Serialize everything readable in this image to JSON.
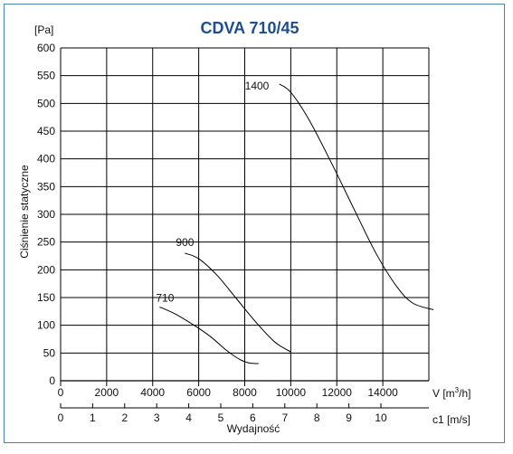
{
  "chart_data": {
    "type": "line",
    "title": "CDVA 710/45",
    "ylabel": "Ciśnienie statyczne",
    "yunit": "[Pa]",
    "xlabel": "Wydajność",
    "x_unit_label": "V [m",
    "x_unit_sup": "3",
    "x_unit_suffix": "/h]",
    "x2_unit_label": "c1 [m/s]",
    "xlim": [
      0,
      16000
    ],
    "ylim": [
      0,
      600
    ],
    "x_ticks": [
      "0",
      "2000",
      "4000",
      "6000",
      "8000",
      "10000",
      "12000",
      "14000"
    ],
    "y_ticks": [
      "0",
      "50",
      "100",
      "150",
      "200",
      "250",
      "300",
      "350",
      "400",
      "450",
      "500",
      "550",
      "600"
    ],
    "x2_ticks": [
      "0",
      "1",
      "2",
      "3",
      "4",
      "5",
      "6",
      "7",
      "8",
      "9",
      "10"
    ],
    "grid": true,
    "series": [
      {
        "name": "710",
        "points": [
          [
            4300,
            133
          ],
          [
            5000,
            120
          ],
          [
            5800,
            100
          ],
          [
            6500,
            80
          ],
          [
            7200,
            55
          ],
          [
            7800,
            38
          ],
          [
            8200,
            32
          ],
          [
            8600,
            31
          ]
        ]
      },
      {
        "name": "900",
        "points": [
          [
            5400,
            230
          ],
          [
            6000,
            220
          ],
          [
            6800,
            190
          ],
          [
            7600,
            150
          ],
          [
            8500,
            105
          ],
          [
            9300,
            70
          ],
          [
            10000,
            52
          ]
        ]
      },
      {
        "name": "1400",
        "points": [
          [
            9500,
            535
          ],
          [
            10000,
            520
          ],
          [
            10800,
            470
          ],
          [
            11800,
            390
          ],
          [
            12800,
            305
          ],
          [
            13700,
            230
          ],
          [
            14600,
            170
          ],
          [
            15300,
            140
          ],
          [
            16200,
            128
          ]
        ]
      }
    ]
  }
}
